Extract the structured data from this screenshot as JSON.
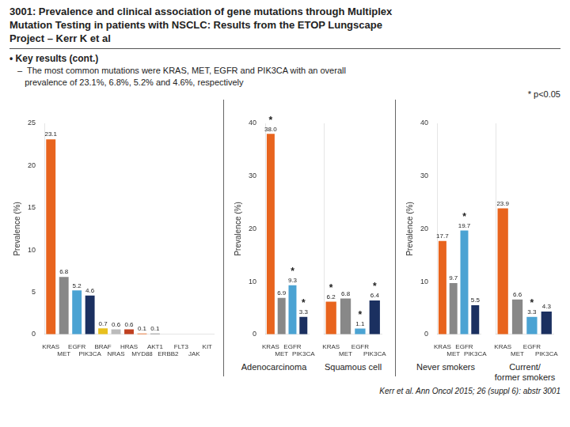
{
  "chart_data": [
    {
      "type": "bar",
      "title": "3001: Prevalence and clinical association of gene mutations through Multiplex\nMutation Testing in patients with NSCLC: Results from the ETOP Lungscape\nProject – Kerr K et al",
      "subtitle": "• Key results (cont.)",
      "annotations": [
        "–  The most common mutations were KRAS, MET, EGFR and PIK3CA with an overall\n   prevalence of 23.1%, 6.8%, 5.2% and 4.6%, respectively",
        "Kerr et al. Ann Oncol 2015; 26 (suppl 6): abstr 3001"
      ],
      "categories": [
        "KRAS",
        "MET",
        "EGFR",
        "PIK3CA",
        "BRAF",
        "NRAS",
        "HRAS",
        "MYD88",
        "AKT1",
        "ERBB2",
        "FLT3",
        "JAK",
        "KIT"
      ],
      "values": [
        23.1,
        6.8,
        5.2,
        4.6,
        0.7,
        0.6,
        0.6,
        0.1,
        0.1,
        0.0,
        0.0,
        0.0,
        0.0
      ],
      "value_labels": [
        "23.1",
        "6.8",
        "5.2",
        "4.6",
        "0.7",
        "0.6",
        "0.6",
        "0.1",
        "0.1",
        null,
        null,
        null,
        null
      ],
      "colors": [
        "#E8641E",
        "#888888",
        "#4BA3D3",
        "#1B3060",
        "#E8C01E",
        "#BBBBBB",
        "#C04020",
        "#E8641E",
        "#888888",
        "#4BA3D3",
        "#E8641E",
        "#888888",
        "#4BA3D3"
      ],
      "data_labels": true,
      "ylabel": "Prevalence (%)",
      "ylim": [
        0,
        25
      ],
      "yticks": [
        0,
        5,
        10,
        15,
        20,
        25
      ],
      "grid": false
    },
    {
      "type": "bar",
      "xlabel": "Adenocarcinoma",
      "categories": [
        "KRAS",
        "MET",
        "EGFR",
        "PIK3CA"
      ],
      "values": [
        38.0,
        6.9,
        9.3,
        3.3
      ],
      "value_labels": [
        "38.0",
        "6.9",
        "9.3",
        "3.3"
      ],
      "significance": [
        "*",
        null,
        "*",
        "*"
      ],
      "colors": [
        "#E8641E",
        "#888888",
        "#4BA3D3",
        "#1B3060"
      ],
      "data_labels": true,
      "ylabel": "Prevalence (%)",
      "ylim": [
        0,
        40
      ],
      "yticks": [
        0,
        10,
        20,
        30,
        40
      ],
      "grid": false
    },
    {
      "type": "bar",
      "xlabel": "Squamous cell",
      "categories": [
        "KRAS",
        "MET",
        "EGFR",
        "PIK3CA"
      ],
      "values": [
        6.2,
        6.8,
        1.1,
        6.4
      ],
      "value_labels": [
        "6.2",
        "6.8",
        "1.1",
        "6.4"
      ],
      "significance": [
        "*",
        null,
        "*",
        "*"
      ],
      "colors": [
        "#E8641E",
        "#888888",
        "#4BA3D3",
        "#1B3060"
      ],
      "data_labels": true,
      "tick_labels": "x",
      "ylim": [
        0,
        40
      ],
      "yticks": [
        0,
        10,
        20,
        30,
        40
      ],
      "grid": false
    },
    {
      "type": "bar",
      "xlabel": "Never smokers",
      "categories": [
        "KRAS",
        "MET",
        "EGFR",
        "PIK3CA"
      ],
      "values": [
        17.7,
        9.7,
        19.7,
        5.5
      ],
      "value_labels": [
        "17.7",
        "9.7",
        "19.7",
        "5.5"
      ],
      "significance": [
        null,
        null,
        "*",
        null
      ],
      "colors": [
        "#E8641E",
        "#888888",
        "#4BA3D3",
        "#1B3060"
      ],
      "data_labels": true,
      "ylabel": "Prevalence (%)",
      "ylim": [
        0,
        40
      ],
      "yticks": [
        0,
        10,
        20,
        30,
        40
      ],
      "grid": false
    },
    {
      "type": "bar",
      "xlabel": "Current/\nformer smokers",
      "annotations": [
        "* p<0.05"
      ],
      "categories": [
        "KRAS",
        "MET",
        "EGFR",
        "PIK3CA"
      ],
      "values": [
        23.9,
        6.6,
        3.3,
        4.3
      ],
      "value_labels": [
        "23.9",
        "6.6",
        "3.3",
        "4.3"
      ],
      "significance": [
        null,
        null,
        "*",
        null
      ],
      "colors": [
        "#E8641E",
        "#888888",
        "#4BA3D3",
        "#1B3060"
      ],
      "data_labels": true,
      "tick_labels": "x",
      "ylim": [
        0,
        40
      ],
      "yticks": [
        0,
        10,
        20,
        30,
        40
      ],
      "grid": false
    }
  ]
}
